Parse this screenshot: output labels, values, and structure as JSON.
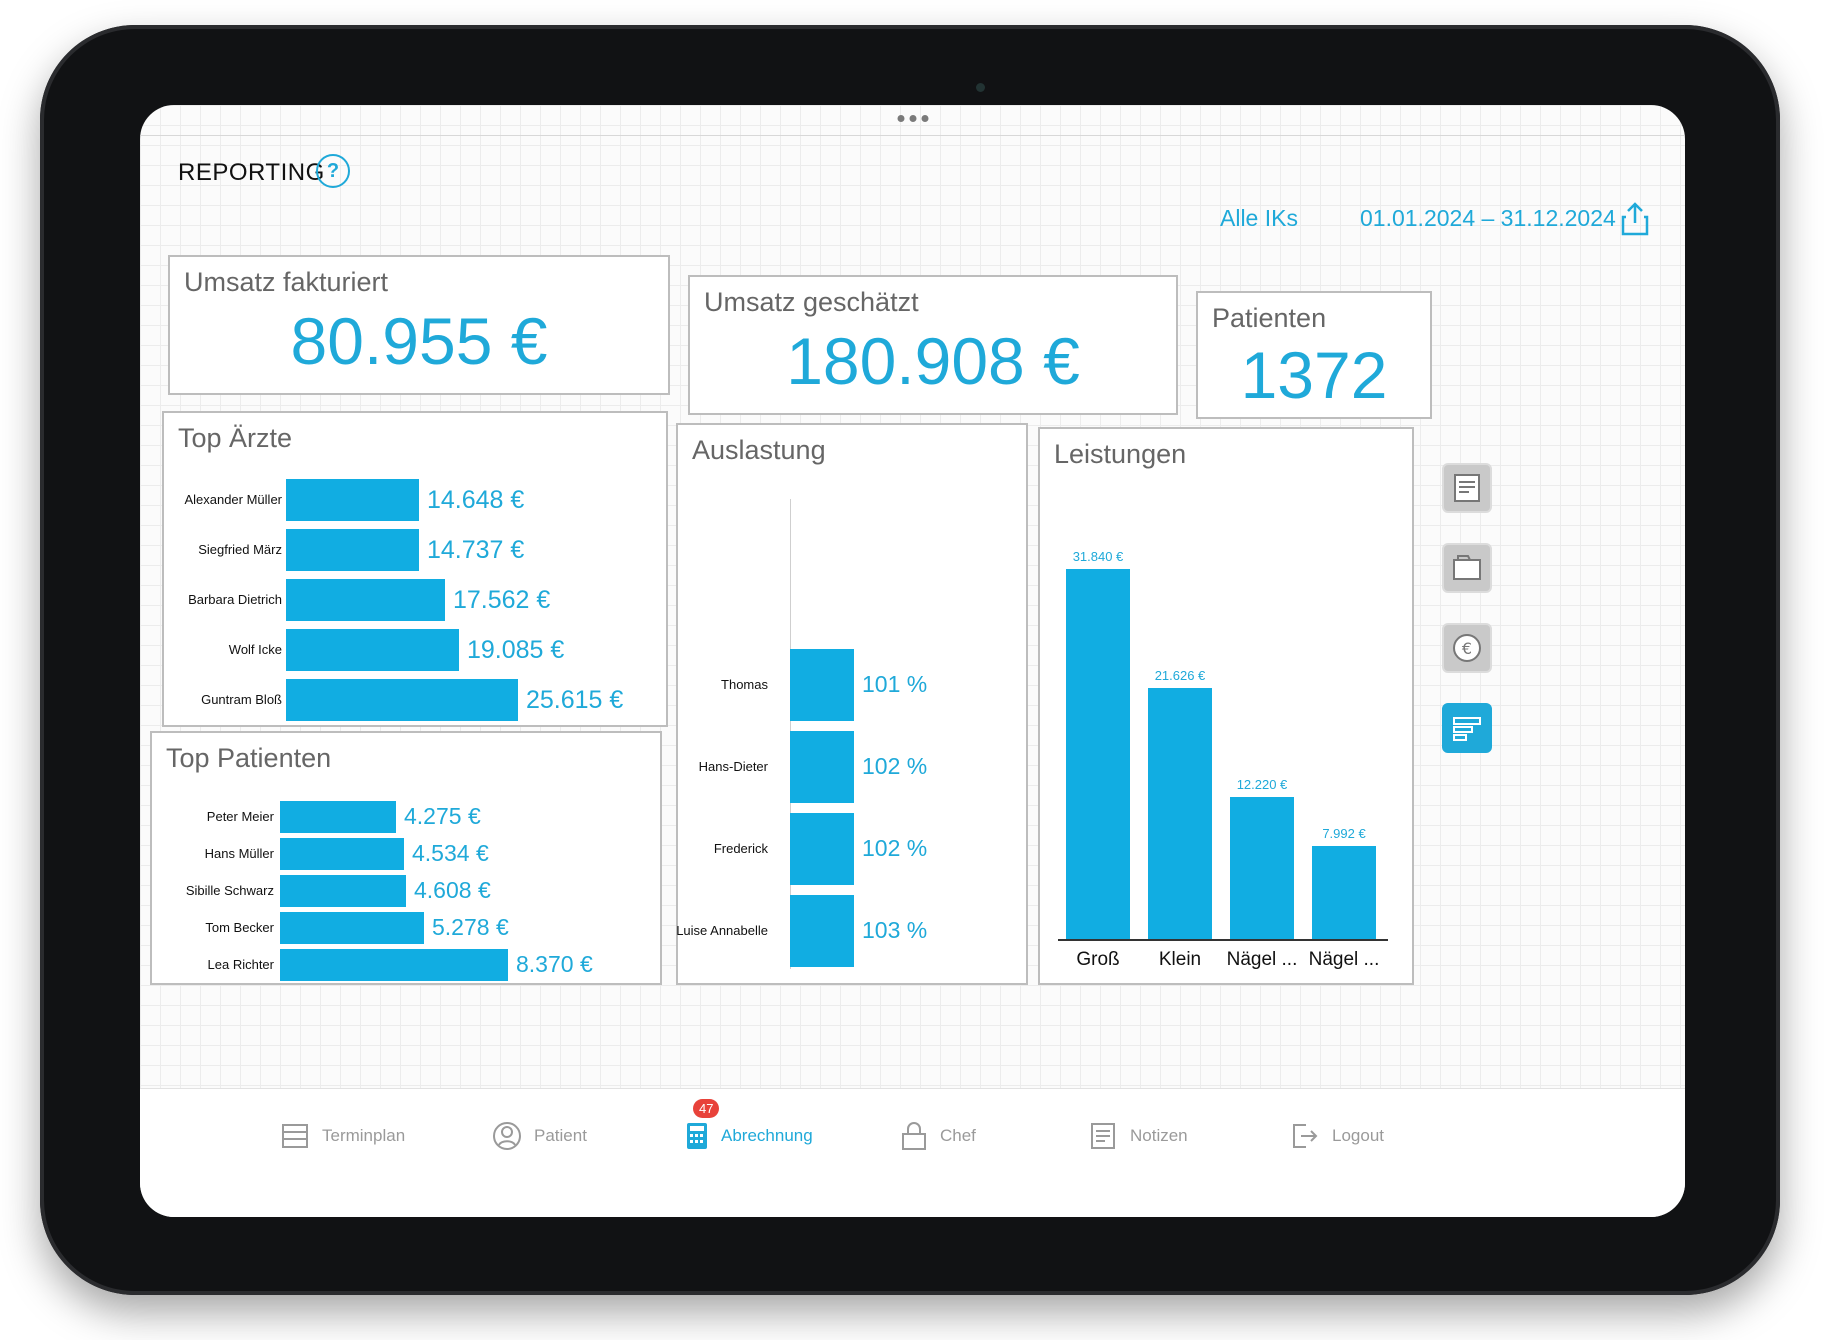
{
  "header": {
    "title": "REPORTING",
    "help_symbol": "?"
  },
  "filters": {
    "iks": "Alle IKs",
    "date_range": "01.01.2024 – 31.12.2024"
  },
  "kpis": {
    "umsatz_fakturiert": {
      "label": "Umsatz fakturiert",
      "value": "80.955 €"
    },
    "umsatz_geschaetzt": {
      "label": "Umsatz geschätzt",
      "value": "180.908 €"
    },
    "patienten": {
      "label": "Patienten",
      "value": "1372"
    }
  },
  "top_aerzte": {
    "title": "Top Ärzte",
    "items": [
      {
        "name": "Alexander Müller",
        "value": "14.648 €",
        "amount": 14648
      },
      {
        "name": "Siegfried März",
        "value": "14.737 €",
        "amount": 14737
      },
      {
        "name": "Barbara Dietrich",
        "value": "17.562 €",
        "amount": 17562
      },
      {
        "name": "Wolf Icke",
        "value": "19.085 €",
        "amount": 19085
      },
      {
        "name": "Guntram Bloß",
        "value": "25.615 €",
        "amount": 25615
      }
    ]
  },
  "top_patienten": {
    "title": "Top Patienten",
    "items": [
      {
        "name": "Peter Meier",
        "value": "4.275 €",
        "amount": 4275
      },
      {
        "name": "Hans Müller",
        "value": "4.534 €",
        "amount": 4534
      },
      {
        "name": "Sibille Schwarz",
        "value": "4.608 €",
        "amount": 4608
      },
      {
        "name": "Tom Becker",
        "value": "5.278 €",
        "amount": 5278
      },
      {
        "name": "Lea Richter",
        "value": "8.370 €",
        "amount": 8370
      }
    ]
  },
  "auslastung": {
    "title": "Auslastung",
    "items": [
      {
        "name": "Thomas",
        "value": "101 %"
      },
      {
        "name": "Hans-Dieter",
        "value": "102 %"
      },
      {
        "name": "Frederick",
        "value": "102 %"
      },
      {
        "name": "Luise Annabelle",
        "value": "103 %"
      }
    ]
  },
  "leistungen": {
    "title": "Leistungen",
    "items": [
      {
        "name": "Groß",
        "value": "31.840 €",
        "amount": 31840
      },
      {
        "name": "Klein",
        "value": "21.626 €",
        "amount": 21626
      },
      {
        "name": "Nägel ...",
        "value": "12.220 €",
        "amount": 12220
      },
      {
        "name": "Nägel ...",
        "value": "7.992 €",
        "amount": 7992
      }
    ]
  },
  "tabbar": {
    "items": [
      {
        "label": "Terminplan",
        "icon": "calendar-list-icon"
      },
      {
        "label": "Patient",
        "icon": "user-icon"
      },
      {
        "label": "Abrechnung",
        "icon": "calculator-icon",
        "badge": "47",
        "active": true
      },
      {
        "label": "Chef",
        "icon": "lock-icon"
      },
      {
        "label": "Notizen",
        "icon": "notes-icon"
      },
      {
        "label": "Logout",
        "icon": "logout-icon"
      }
    ]
  },
  "side_buttons": [
    "document-icon",
    "folder-icon",
    "euro-icon",
    "report-icon"
  ],
  "colors": {
    "accent": "#1fa9d9",
    "bar": "#11ade2",
    "badge": "#e8423a"
  }
}
